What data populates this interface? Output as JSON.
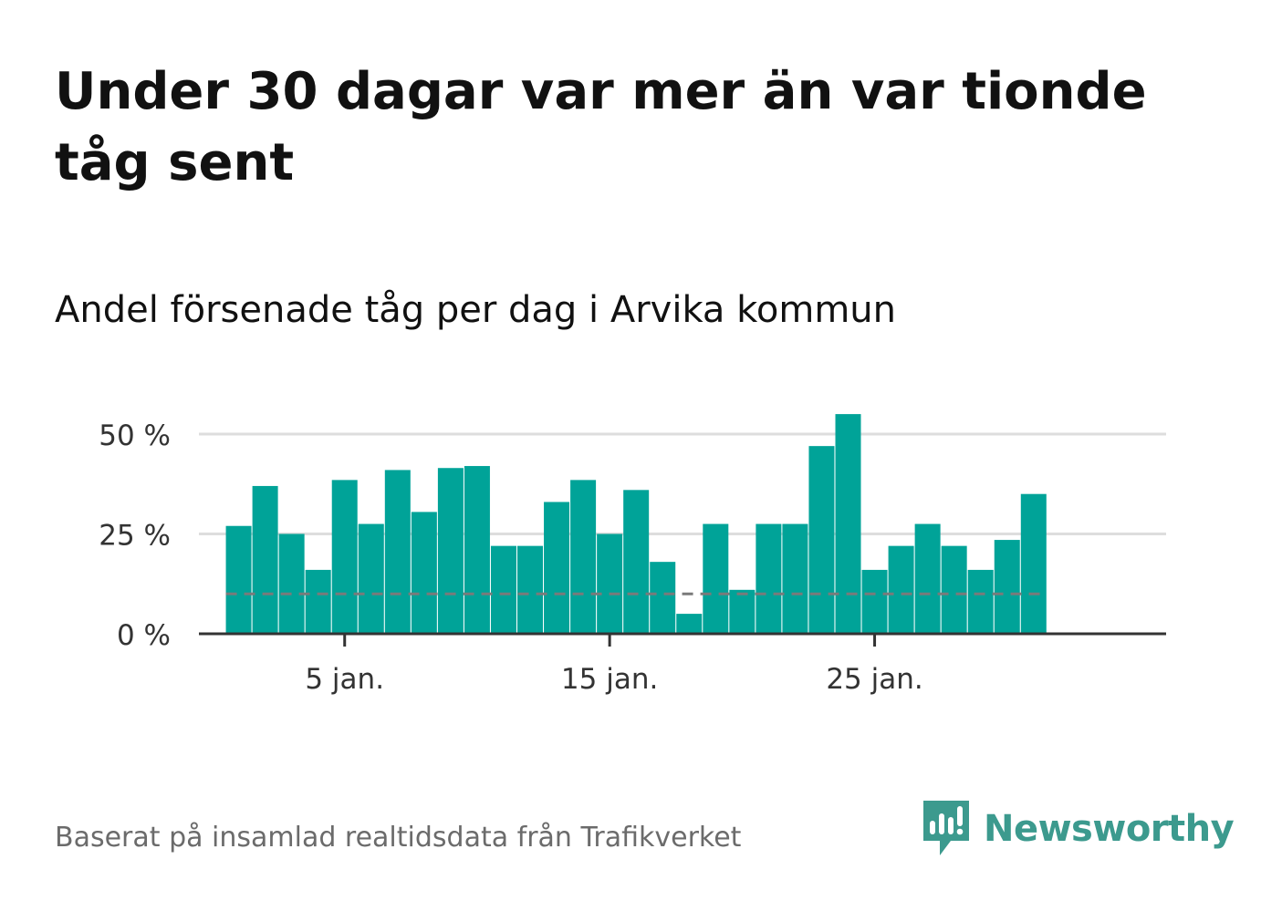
{
  "title": "Under 30 dagar var mer än var tionde tåg sent",
  "subtitle": "Andel försenade tåg per dag i Arvika kommun",
  "footer": "Baserat på insamlad realtidsdata från Trafikverket",
  "brand": {
    "name": "Newsworthy",
    "icon": "newsworthy-logo-icon",
    "color": "#3c9a8e"
  },
  "chart_data": {
    "type": "bar",
    "unit": "%",
    "x": [
      1,
      2,
      3,
      4,
      5,
      6,
      7,
      8,
      9,
      10,
      11,
      12,
      13,
      14,
      15,
      16,
      17,
      18,
      19,
      20,
      21,
      22,
      23,
      24,
      25,
      26,
      27,
      28,
      29,
      30,
      31
    ],
    "values": [
      27,
      37,
      25,
      16,
      38.5,
      27.5,
      41,
      30.5,
      41.5,
      42,
      22,
      22,
      33,
      38.5,
      25,
      36,
      18,
      5,
      27.5,
      11,
      27.5,
      27.5,
      47,
      55,
      16,
      22,
      27.5,
      22,
      16,
      23.5,
      35
    ],
    "x_ticks": [
      {
        "x": 5,
        "label": "5 jan."
      },
      {
        "x": 15,
        "label": "15 jan."
      },
      {
        "x": 25,
        "label": "25 jan."
      }
    ],
    "y_ticks": [
      {
        "value": 0,
        "label": "0 %"
      },
      {
        "value": 25,
        "label": "25 %"
      },
      {
        "value": 50,
        "label": "50 %"
      }
    ],
    "ylim": [
      0,
      50
    ],
    "xlim": [
      -0.5,
      36
    ],
    "reference_line": {
      "value": 10,
      "style": "dashed"
    },
    "grid": true,
    "colors": {
      "bar": "#00a398",
      "grid": "#dddddd",
      "axis": "#333333",
      "reference": "#7a7a7a",
      "tick_label": "#333333"
    }
  }
}
